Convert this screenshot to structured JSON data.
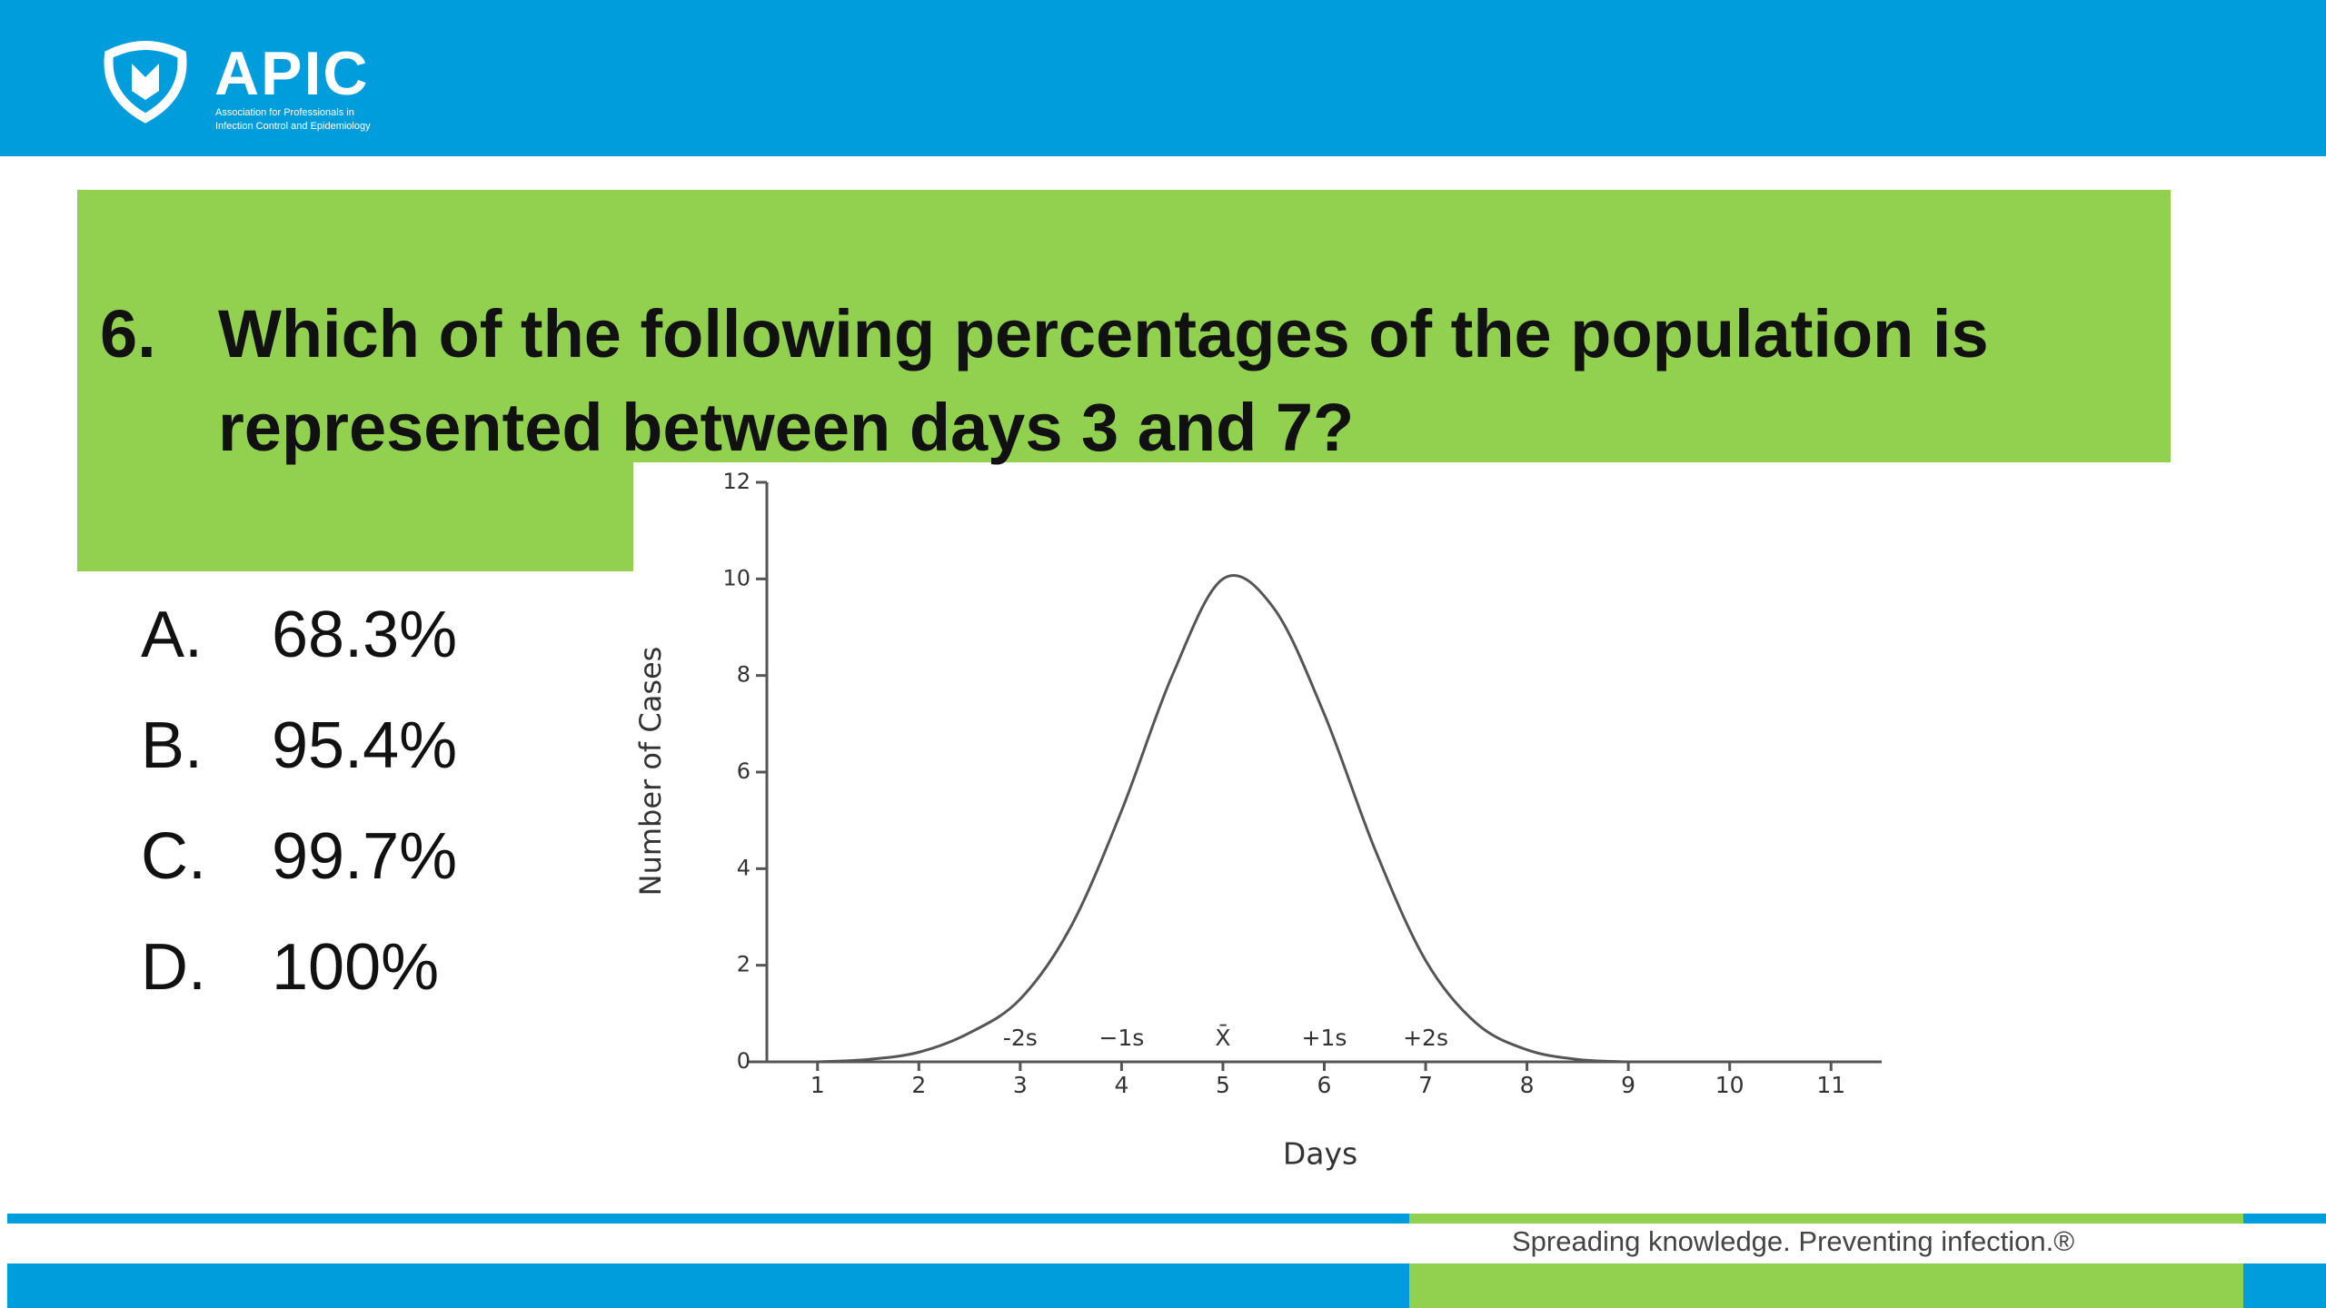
{
  "header": {
    "logo_name": "APIC",
    "logo_tagline": [
      "Association for Professionals in",
      "Infection Control and Epidemiology"
    ]
  },
  "question": {
    "number": "6.",
    "lines": [
      "Which of the following percentages of the population is",
      "represented between days 3 and 7?"
    ]
  },
  "options": [
    {
      "letter": "A.",
      "text": "68.3%"
    },
    {
      "letter": "B.",
      "text": "95.4%"
    },
    {
      "letter": "C.",
      "text": "99.7%"
    },
    {
      "letter": "D.",
      "text": "100%"
    }
  ],
  "chart_data": {
    "type": "line",
    "x_label": "Days",
    "y_label": "Number of Cases",
    "x": [
      1,
      1.5,
      2,
      2.5,
      3,
      3.5,
      4,
      4.5,
      5,
      5.5,
      6,
      6.5,
      7,
      7.5,
      8,
      8.5,
      9
    ],
    "series": [
      {
        "color": "#555555",
        "values": [
          0,
          0.05,
          0.2,
          0.6,
          1.3,
          2.8,
          5.2,
          8.0,
          10,
          9.4,
          7.2,
          4.4,
          2.1,
          0.8,
          0.25,
          0.05,
          0
        ]
      }
    ],
    "xlim": [
      0.5,
      11.5
    ],
    "ylim": [
      0,
      12
    ],
    "xticks": [
      1,
      2,
      3,
      4,
      5,
      6,
      7,
      8,
      9,
      10,
      11
    ],
    "yticks": [
      0,
      2,
      4,
      6,
      8,
      10,
      12
    ],
    "annotations": [
      {
        "x": 3,
        "label": "-2s"
      },
      {
        "x": 4,
        "label": "−1s"
      },
      {
        "x": 5,
        "label": "X̄"
      },
      {
        "x": 6,
        "label": "+1s"
      },
      {
        "x": 7,
        "label": "+2s"
      }
    ]
  },
  "footer": {
    "tagline": "Spreading knowledge. Preventing infection.®"
  }
}
